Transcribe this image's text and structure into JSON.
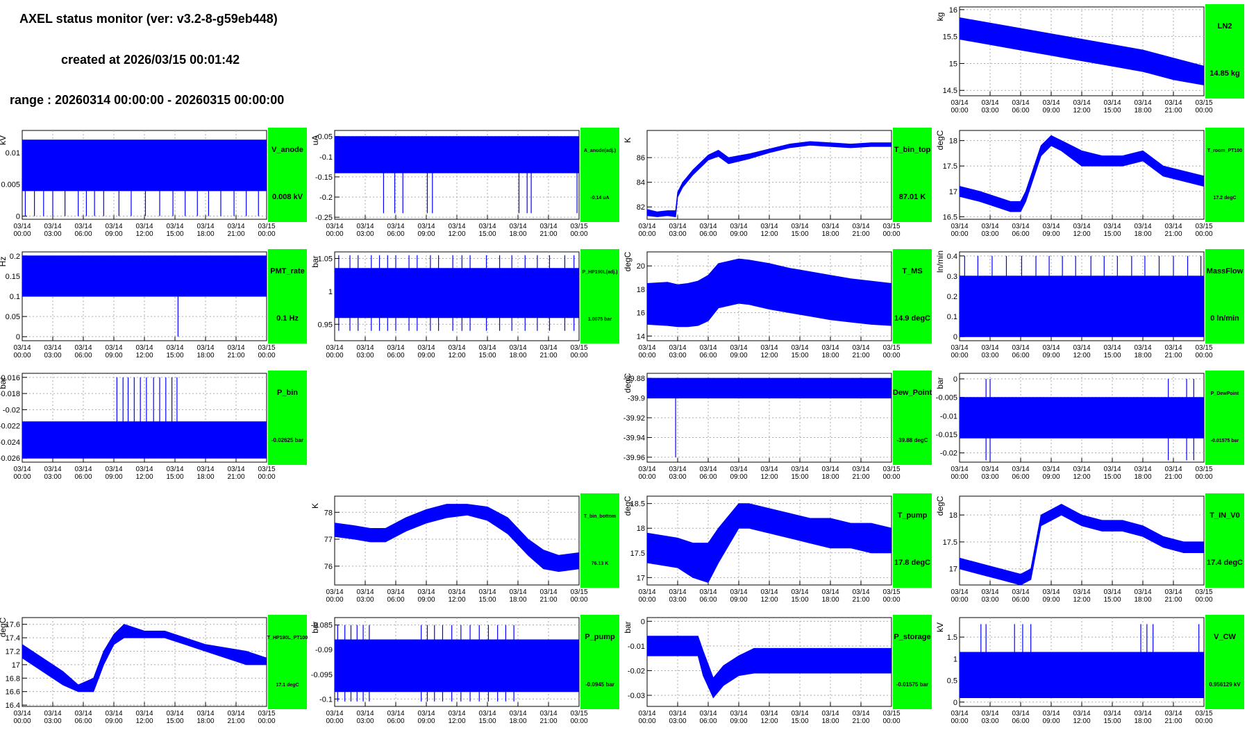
{
  "header": {
    "title": "AXEL status monitor (ver: v3.2-8-g59eb448)",
    "created": "created at 2026/03/15 00:01:42",
    "range": "range : 20260314 00:00:00 - 20260315 00:00:00"
  },
  "colors": {
    "series": "#0000ff",
    "status_ok": "#00ff00",
    "grid": "#aaaaaa"
  },
  "x_ticks": [
    [
      "03/14",
      "00:00"
    ],
    [
      "03/14",
      "03:00"
    ],
    [
      "03/14",
      "06:00"
    ],
    [
      "03/14",
      "09:00"
    ],
    [
      "03/14",
      "12:00"
    ],
    [
      "03/14",
      "15:00"
    ],
    [
      "03/14",
      "18:00"
    ],
    [
      "03/14",
      "21:00"
    ],
    [
      "03/15",
      "00:00"
    ]
  ],
  "chart_data": [
    {
      "type": "line",
      "name": "LN2",
      "value": "14.85 kg",
      "ylabel": "kg",
      "yticks": [
        "14.5",
        "15",
        "15.5",
        "16"
      ],
      "ylim": [
        14.4,
        16.05
      ],
      "x": [
        0,
        3,
        6,
        9,
        12,
        15,
        18,
        21,
        24
      ],
      "y_upper": [
        15.85,
        15.75,
        15.65,
        15.55,
        15.45,
        15.35,
        15.25,
        15.1,
        14.95
      ],
      "y_lower": [
        15.45,
        15.35,
        15.25,
        15.15,
        15.05,
        14.95,
        14.85,
        14.7,
        14.6
      ]
    },
    {
      "type": "line",
      "name": "V_anode",
      "value": "0.008 kV",
      "ylabel": "kV",
      "yticks": [
        "0",
        "0.005",
        "0.01"
      ],
      "ylim": [
        -0.0005,
        0.0135
      ],
      "x": [
        0,
        24
      ],
      "y_upper": [
        0.012,
        0.012
      ],
      "y_lower": [
        0.004,
        0.004
      ],
      "spikes_down_to": 0,
      "spike_hours": [
        0.3,
        1.2,
        2.1,
        3.0,
        4.2,
        5.5,
        6.3,
        7.1,
        8.0,
        9.5,
        10.7,
        12.1,
        13.5,
        14.8,
        16.0,
        17.2,
        18.3,
        19.5,
        20.8,
        22.0,
        23.2
      ]
    },
    {
      "type": "line",
      "name": "A_anode(adj.)",
      "value": "-0.14 uA",
      "ylabel": "uA",
      "yticks": [
        "-0.25",
        "-0.2",
        "-0.15",
        "-0.1",
        "-0.05"
      ],
      "ylim": [
        -0.255,
        -0.035
      ],
      "x": [
        0,
        24
      ],
      "y_upper": [
        -0.05,
        -0.05
      ],
      "y_lower": [
        -0.14,
        -0.14
      ],
      "spikes_down_to": -0.24,
      "spike_hours": [
        4.8,
        5.9,
        6.7,
        9.1,
        9.6,
        18.1,
        18.9,
        19.3,
        23.8
      ]
    },
    {
      "type": "line",
      "name": "T_bin_top",
      "value": "87.01 K",
      "ylabel": "K",
      "yticks": [
        "82",
        "84",
        "86"
      ],
      "ylim": [
        81,
        88.2
      ],
      "x": [
        0,
        1,
        2,
        2.8,
        3.0,
        3.5,
        4.5,
        6,
        7,
        8,
        10,
        12,
        14,
        16,
        18,
        20,
        22,
        24
      ],
      "y_upper": [
        81.8,
        81.6,
        81.7,
        81.7,
        83.2,
        84.0,
        85.0,
        86.2,
        86.6,
        86.0,
        86.3,
        86.7,
        87.1,
        87.3,
        87.2,
        87.1,
        87.2,
        87.2
      ],
      "y_lower": [
        81.3,
        81.2,
        81.3,
        81.2,
        82.8,
        83.6,
        84.6,
        85.8,
        86.1,
        85.5,
        85.9,
        86.4,
        86.8,
        87.0,
        86.9,
        86.8,
        86.9,
        86.9
      ]
    },
    {
      "type": "line",
      "name": "T_room_PT100",
      "value": "17.2 degC",
      "ylabel": "degC",
      "yticks": [
        "16.5",
        "17",
        "17.5",
        "18"
      ],
      "ylim": [
        16.45,
        18.2
      ],
      "x": [
        0,
        2,
        3.5,
        5,
        6,
        6.5,
        8,
        9,
        10,
        12,
        14,
        16,
        18,
        20,
        22,
        24
      ],
      "y_upper": [
        17.1,
        17.0,
        16.9,
        16.8,
        16.8,
        17.0,
        17.9,
        18.1,
        18.0,
        17.8,
        17.7,
        17.7,
        17.8,
        17.5,
        17.4,
        17.3
      ],
      "y_lower": [
        16.9,
        16.8,
        16.7,
        16.6,
        16.6,
        16.8,
        17.7,
        17.9,
        17.8,
        17.5,
        17.5,
        17.5,
        17.6,
        17.3,
        17.2,
        17.1
      ]
    },
    {
      "type": "line",
      "name": "PMT_rate",
      "value": "0.1 Hz",
      "ylabel": "Hz",
      "yticks": [
        "0",
        "0.05",
        "0.1",
        "0.15",
        "0.2"
      ],
      "ylim": [
        -0.01,
        0.21
      ],
      "x": [
        0,
        24
      ],
      "y_upper": [
        0.2,
        0.2
      ],
      "y_lower": [
        0.1,
        0.1
      ],
      "spikes_down_to": 0,
      "spike_hours": [
        15.3
      ]
    },
    {
      "type": "line",
      "name": "P_HP190L(adj.)",
      "value": "1.0075 bar",
      "ylabel": "bar",
      "yticks": [
        "0.95",
        "1",
        "1.05"
      ],
      "ylim": [
        0.925,
        1.06
      ],
      "x": [
        0,
        24
      ],
      "y_upper": [
        1.035,
        1.035
      ],
      "y_lower": [
        0.96,
        0.96
      ],
      "spikes_up_to": 1.055,
      "spikes_down_to": 0.94,
      "spike_hours": [
        0.4,
        1.5,
        2.3,
        3.6,
        4.4,
        5.2,
        6.0,
        7.3,
        8.1,
        9.4,
        10.2,
        11.6,
        12.5,
        13.3,
        14.9,
        16.2,
        17.4,
        18.7,
        19.9,
        21.1,
        22.6,
        23.5
      ]
    },
    {
      "type": "line",
      "name": "T_MS",
      "value": "14.9 degC",
      "ylabel": "degC",
      "yticks": [
        "14",
        "16",
        "18",
        "20"
      ],
      "ylim": [
        13.6,
        21.2
      ],
      "x": [
        0,
        2,
        3,
        4,
        5,
        6,
        7,
        9,
        10,
        12,
        14,
        16,
        18,
        20,
        22,
        24
      ],
      "y_upper": [
        18.5,
        18.6,
        18.4,
        18.5,
        18.7,
        19.2,
        20.2,
        20.6,
        20.5,
        20.2,
        19.8,
        19.5,
        19.2,
        18.9,
        18.7,
        18.5
      ],
      "y_lower": [
        15.0,
        14.9,
        14.8,
        14.8,
        14.9,
        15.3,
        16.4,
        16.8,
        16.7,
        16.3,
        16.0,
        15.7,
        15.4,
        15.2,
        15.0,
        14.9
      ]
    },
    {
      "type": "line",
      "name": "MassFlow",
      "value": "0 ln/min",
      "ylabel": "ln/min",
      "yticks": [
        "0",
        "0.1",
        "0.2",
        "0.3",
        "0.4"
      ],
      "ylim": [
        -0.02,
        0.42
      ],
      "x": [
        0,
        24
      ],
      "y_upper": [
        0.3,
        0.3
      ],
      "y_lower": [
        0,
        0
      ],
      "spikes_up_to": 0.4,
      "spike_hours": [
        0.5,
        1.8,
        3.2,
        4.6,
        6.1,
        7.5,
        8.8,
        10.1,
        11.4,
        12.9,
        14.2,
        15.5,
        16.9,
        18.2,
        19.6,
        21.0,
        22.4,
        23.7
      ]
    },
    {
      "type": "line",
      "name": "P_bin",
      "value": "-0.02625 bar",
      "ylabel": "bar",
      "yticks": [
        "-0.026",
        "-0.024",
        "-0.022",
        "-0.02",
        "-0.018",
        "-0.016"
      ],
      "ylim": [
        -0.0265,
        -0.0155
      ],
      "x": [
        0,
        24
      ],
      "y_upper": [
        -0.0215,
        -0.0215
      ],
      "y_lower": [
        -0.026,
        -0.026
      ],
      "spikes_up_to": -0.016,
      "spike_hours": [
        9.3,
        9.9,
        10.4,
        11.0,
        11.6,
        12.2,
        12.9,
        13.5,
        14.1,
        14.7,
        15.2
      ]
    },
    {
      "type": "line",
      "name": "Dew_Point",
      "value": "-39.88 degC",
      "ylabel": "degC",
      "yticks": [
        "-39.96",
        "-39.94",
        "-39.92",
        "-39.9",
        "-39.88"
      ],
      "ylim": [
        -39.965,
        -39.875
      ],
      "x": [
        0,
        24
      ],
      "y_upper": [
        -39.88,
        -39.88
      ],
      "y_lower": [
        -39.9,
        -39.9
      ],
      "spikes_down_to": -39.96,
      "spike_hours": [
        2.8
      ]
    },
    {
      "type": "line",
      "name": "P_DewPoint",
      "value": "-0.01575 bar",
      "ylabel": "bar",
      "yticks": [
        "-0.02",
        "-0.015",
        "-0.01",
        "-0.005",
        "0"
      ],
      "ylim": [
        -0.0225,
        0.0015
      ],
      "x": [
        0,
        24
      ],
      "y_upper": [
        -0.005,
        -0.005
      ],
      "y_lower": [
        -0.016,
        -0.016
      ],
      "spikes_up_to": 0,
      "spikes_down_to": -0.022,
      "spike_hours": [
        2.6,
        3.0,
        20.5,
        22.3,
        23.0
      ]
    },
    {
      "type": "line",
      "name": "T_bin_bottom",
      "value": "76.13 K",
      "ylabel": "K",
      "yticks": [
        "76",
        "77",
        "78"
      ],
      "ylim": [
        75.3,
        78.6
      ],
      "x": [
        0,
        2,
        3.5,
        5,
        7,
        9,
        11,
        13,
        15,
        17,
        19,
        20.5,
        22,
        24
      ],
      "y_upper": [
        77.6,
        77.5,
        77.4,
        77.4,
        77.8,
        78.1,
        78.3,
        78.3,
        78.2,
        77.8,
        77.0,
        76.6,
        76.4,
        76.5
      ],
      "y_lower": [
        77.1,
        77.0,
        76.9,
        76.9,
        77.3,
        77.6,
        77.8,
        77.9,
        77.7,
        77.2,
        76.4,
        75.9,
        75.8,
        75.9
      ]
    },
    {
      "type": "line",
      "name": "T_pump",
      "value": "17.8 degC",
      "ylabel": "degC",
      "yticks": [
        "17",
        "17.5",
        "18",
        "18.5"
      ],
      "ylim": [
        16.85,
        18.65
      ],
      "x": [
        0,
        3,
        4.5,
        6,
        7,
        9,
        10,
        12,
        14,
        16,
        18,
        20,
        22,
        24
      ],
      "y_upper": [
        17.9,
        17.8,
        17.7,
        17.7,
        18.0,
        18.5,
        18.5,
        18.4,
        18.3,
        18.2,
        18.2,
        18.1,
        18.1,
        18.0
      ],
      "y_lower": [
        17.3,
        17.2,
        17.0,
        16.9,
        17.3,
        18.0,
        18.0,
        17.9,
        17.8,
        17.7,
        17.6,
        17.6,
        17.5,
        17.5
      ]
    },
    {
      "type": "line",
      "name": "T_IN_V0",
      "value": "17.4 degC",
      "ylabel": "degC",
      "yticks": [
        "17",
        "17.5",
        "18"
      ],
      "ylim": [
        16.7,
        18.35
      ],
      "x": [
        0,
        2,
        4,
        6,
        7,
        8,
        10,
        12,
        14,
        16,
        18,
        20,
        22,
        24
      ],
      "y_upper": [
        17.2,
        17.1,
        17.0,
        16.9,
        17.0,
        18.0,
        18.2,
        18.0,
        17.9,
        17.9,
        17.8,
        17.6,
        17.5,
        17.5
      ],
      "y_lower": [
        17.0,
        16.9,
        16.8,
        16.7,
        16.8,
        17.8,
        18.0,
        17.8,
        17.7,
        17.7,
        17.6,
        17.4,
        17.3,
        17.3
      ]
    },
    {
      "type": "line",
      "name": "T_HP190L_PT100",
      "value": "17.1 degC",
      "ylabel": "degC",
      "yticks": [
        "16.4",
        "16.6",
        "16.8",
        "17",
        "17.2",
        "17.4",
        "17.6"
      ],
      "ylim": [
        16.38,
        17.7
      ],
      "x": [
        0,
        2,
        4,
        5.5,
        7,
        8,
        9,
        10,
        12,
        14,
        16,
        18,
        20,
        22,
        24
      ],
      "y_upper": [
        17.3,
        17.1,
        16.9,
        16.7,
        16.8,
        17.2,
        17.45,
        17.6,
        17.5,
        17.5,
        17.4,
        17.3,
        17.25,
        17.2,
        17.1
      ],
      "y_lower": [
        17.1,
        16.9,
        16.7,
        16.6,
        16.6,
        17.0,
        17.3,
        17.4,
        17.4,
        17.4,
        17.3,
        17.2,
        17.1,
        17.0,
        17.0
      ]
    },
    {
      "type": "line",
      "name": "P_pump",
      "value": "-0.0945 bar",
      "ylabel": "bar",
      "yticks": [
        "-0.1",
        "-0.095",
        "-0.09",
        "-0.085"
      ],
      "ylim": [
        -0.1015,
        -0.0835
      ],
      "x": [
        0,
        24
      ],
      "y_upper": [
        -0.088,
        -0.088
      ],
      "y_lower": [
        -0.0985,
        -0.0985
      ],
      "spikes_up_to": -0.085,
      "spikes_down_to": -0.1005,
      "spike_hours": [
        0.3,
        1.0,
        1.6,
        2.2,
        2.8,
        3.4,
        8.5,
        9.1,
        9.8,
        10.6,
        11.5,
        12.4,
        13.3,
        14.2,
        15.1,
        16.0,
        16.8,
        17.6
      ]
    },
    {
      "type": "line",
      "name": "P_storage",
      "value": "-0.01575 bar",
      "ylabel": "bar",
      "yticks": [
        "-0.03",
        "-0.02",
        "-0.01",
        "0"
      ],
      "ylim": [
        -0.0345,
        0.0015
      ],
      "x": [
        0,
        5.0,
        5.5,
        6.5,
        7.5,
        9,
        10.5,
        12,
        14,
        16,
        18,
        20,
        22,
        24
      ],
      "y_upper": [
        -0.006,
        -0.006,
        -0.012,
        -0.023,
        -0.018,
        -0.014,
        -0.011,
        -0.011,
        -0.011,
        -0.011,
        -0.011,
        -0.011,
        -0.011,
        -0.011
      ],
      "y_lower": [
        -0.014,
        -0.014,
        -0.022,
        -0.031,
        -0.026,
        -0.022,
        -0.021,
        -0.021,
        -0.021,
        -0.021,
        -0.021,
        -0.021,
        -0.021,
        -0.021
      ]
    },
    {
      "type": "line",
      "name": "V_CW",
      "value": "0.956129 kV",
      "ylabel": "kV",
      "yticks": [
        "0",
        "0.5",
        "1",
        "1.5"
      ],
      "ylim": [
        -0.1,
        1.95
      ],
      "x": [
        0,
        24
      ],
      "y_upper": [
        1.15,
        1.15
      ],
      "y_lower": [
        0.1,
        0.1
      ],
      "spikes_up_to": 1.8,
      "spike_hours": [
        2.1,
        2.6,
        5.4,
        6.2,
        7.0,
        17.8,
        18.4,
        19.0,
        23.5
      ]
    }
  ]
}
